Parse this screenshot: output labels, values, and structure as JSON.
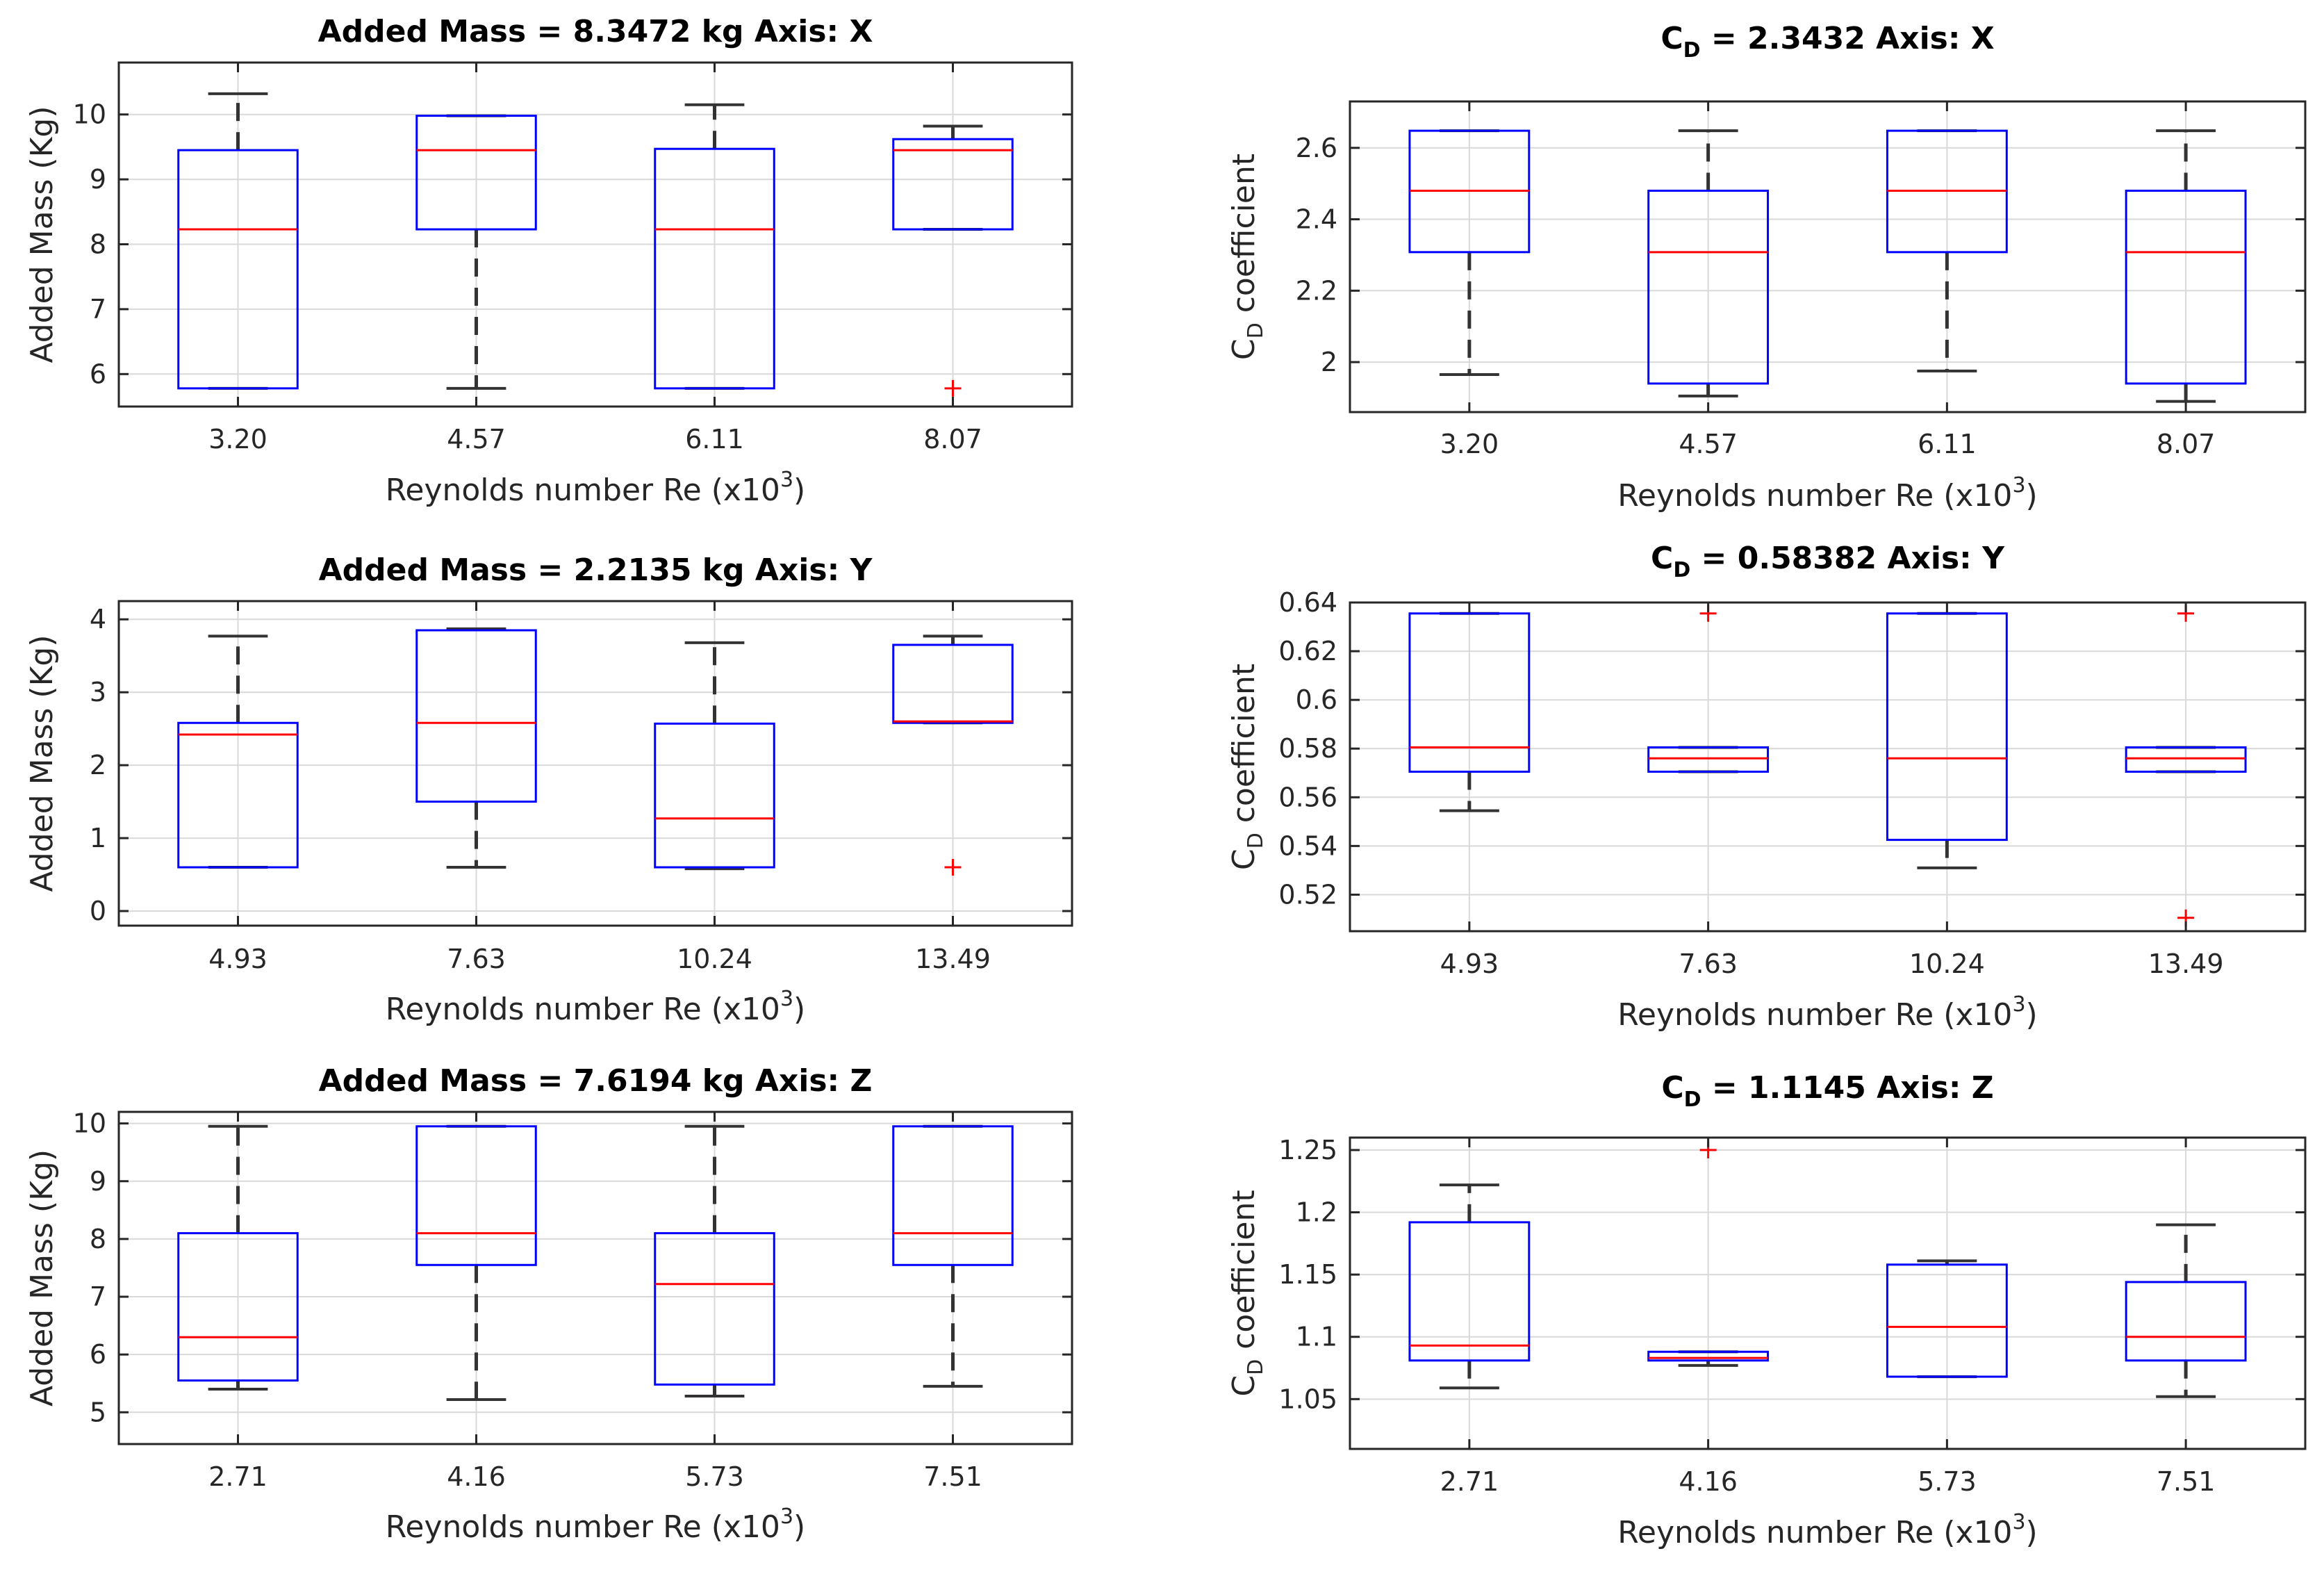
{
  "figure": {
    "background": "#ffffff",
    "colors": {
      "box": "#0000ff",
      "median": "#ff0000",
      "whisker": "#333333",
      "outlier": "#ff0000",
      "grid": "#d9d9d9",
      "axis": "#262626"
    }
  },
  "chart_data": [
    {
      "type": "box",
      "title": "Added Mass = 8.3472 kg Axis: X",
      "xlabel": "Reynolds number Re (x10",
      "xlabel_sup": "3",
      "xlabel_end": ")",
      "ylabel": "Added Mass (Kg)",
      "ylim": [
        5.5,
        10.8
      ],
      "yticks": [
        6,
        7,
        8,
        9,
        10
      ],
      "ytick_labels": [
        "6",
        "7",
        "8",
        "9",
        "10"
      ],
      "grid": true,
      "categories": [
        "3.20",
        "4.57",
        "6.11",
        "8.07"
      ],
      "boxes": [
        {
          "low": 5.78,
          "q1": 5.78,
          "median": 8.23,
          "q3": 9.45,
          "high": 10.32,
          "outliers": []
        },
        {
          "low": 5.78,
          "q1": 8.23,
          "median": 9.45,
          "q3": 9.98,
          "high": 9.98,
          "outliers": []
        },
        {
          "low": 5.78,
          "q1": 5.78,
          "median": 8.23,
          "q3": 9.47,
          "high": 10.15,
          "outliers": []
        },
        {
          "low": 8.23,
          "q1": 8.23,
          "median": 9.45,
          "q3": 9.62,
          "high": 9.82,
          "outliers": [
            5.78
          ]
        }
      ]
    },
    {
      "type": "box",
      "title_pre": "C",
      "title_sub": "D",
      "title_post": " = 2.3432 Axis: X",
      "xlabel": "Reynolds number Re (x10",
      "xlabel_sup": "3",
      "xlabel_end": ")",
      "ylabel_pre": "C",
      "ylabel_sub": "D",
      "ylabel_post": " coefficient",
      "ylim": [
        1.86,
        2.73
      ],
      "yticks": [
        2.0,
        2.2,
        2.4,
        2.6
      ],
      "ytick_labels": [
        "2",
        "2.2",
        "2.4",
        "2.6"
      ],
      "grid": true,
      "categories": [
        "3.20",
        "4.57",
        "6.11",
        "8.07"
      ],
      "boxes": [
        {
          "low": 1.965,
          "q1": 2.308,
          "median": 2.48,
          "q3": 2.648,
          "high": 2.648,
          "outliers": []
        },
        {
          "low": 1.905,
          "q1": 1.94,
          "median": 2.308,
          "q3": 2.48,
          "high": 2.648,
          "outliers": []
        },
        {
          "low": 1.975,
          "q1": 2.308,
          "median": 2.48,
          "q3": 2.648,
          "high": 2.648,
          "outliers": []
        },
        {
          "low": 1.89,
          "q1": 1.94,
          "median": 2.308,
          "q3": 2.48,
          "high": 2.648,
          "outliers": []
        }
      ]
    },
    {
      "type": "box",
      "title": "Added Mass = 2.2135 kg Axis: Y",
      "xlabel": "Reynolds number Re (x10",
      "xlabel_sup": "3",
      "xlabel_end": ")",
      "ylabel": "Added Mass (Kg)",
      "ylim": [
        -0.2,
        4.25
      ],
      "yticks": [
        0,
        1,
        2,
        3,
        4
      ],
      "ytick_labels": [
        "0",
        "1",
        "2",
        "3",
        "4"
      ],
      "grid": true,
      "categories": [
        "4.93",
        "7.63",
        "10.24",
        "13.49"
      ],
      "boxes": [
        {
          "low": 0.6,
          "q1": 0.6,
          "median": 2.42,
          "q3": 2.58,
          "high": 3.77,
          "outliers": []
        },
        {
          "low": 0.6,
          "q1": 1.5,
          "median": 2.58,
          "q3": 3.85,
          "high": 3.87,
          "outliers": []
        },
        {
          "low": 0.58,
          "q1": 0.6,
          "median": 1.27,
          "q3": 2.57,
          "high": 3.68,
          "outliers": []
        },
        {
          "low": 2.58,
          "q1": 2.58,
          "median": 2.6,
          "q3": 3.65,
          "high": 3.77,
          "outliers": [
            0.6
          ]
        }
      ]
    },
    {
      "type": "box",
      "title_pre": "C",
      "title_sub": "D",
      "title_post": " = 0.58382 Axis: Y",
      "xlabel": "Reynolds number Re (x10",
      "xlabel_sup": "3",
      "xlabel_end": ")",
      "ylabel_pre": "C",
      "ylabel_sub": "D",
      "ylabel_post": " coefficient",
      "ylim": [
        0.505,
        0.64
      ],
      "yticks": [
        0.52,
        0.54,
        0.56,
        0.58,
        0.6,
        0.62,
        0.64
      ],
      "ytick_labels": [
        "0.52",
        "0.54",
        "0.56",
        "0.58",
        "0.6",
        "0.62",
        "0.64"
      ],
      "grid": true,
      "categories": [
        "4.93",
        "7.63",
        "10.24",
        "13.49"
      ],
      "boxes": [
        {
          "low": 0.5545,
          "q1": 0.5705,
          "median": 0.5805,
          "q3": 0.6355,
          "high": 0.6355,
          "outliers": []
        },
        {
          "low": 0.5705,
          "q1": 0.5705,
          "median": 0.576,
          "q3": 0.5805,
          "high": 0.5805,
          "outliers": [
            0.6355
          ]
        },
        {
          "low": 0.531,
          "q1": 0.5425,
          "median": 0.576,
          "q3": 0.6355,
          "high": 0.6355,
          "outliers": []
        },
        {
          "low": 0.5705,
          "q1": 0.5705,
          "median": 0.576,
          "q3": 0.5805,
          "high": 0.5805,
          "outliers": [
            0.6355,
            0.5105
          ]
        }
      ]
    },
    {
      "type": "box",
      "title": "Added Mass = 7.6194 kg Axis: Z",
      "xlabel": "Reynolds number Re (x10",
      "xlabel_sup": "3",
      "xlabel_end": ")",
      "ylabel": "Added Mass (Kg)",
      "ylim": [
        4.45,
        10.2
      ],
      "yticks": [
        5,
        6,
        7,
        8,
        9,
        10
      ],
      "ytick_labels": [
        "5",
        "6",
        "7",
        "8",
        "9",
        "10"
      ],
      "grid": true,
      "categories": [
        "2.71",
        "4.16",
        "5.73",
        "7.51"
      ],
      "boxes": [
        {
          "low": 5.4,
          "q1": 5.55,
          "median": 6.3,
          "q3": 8.1,
          "high": 9.95,
          "outliers": []
        },
        {
          "low": 5.22,
          "q1": 7.55,
          "median": 8.1,
          "q3": 9.95,
          "high": 9.95,
          "outliers": []
        },
        {
          "low": 5.28,
          "q1": 5.48,
          "median": 7.22,
          "q3": 8.1,
          "high": 9.95,
          "outliers": []
        },
        {
          "low": 5.45,
          "q1": 7.55,
          "median": 8.1,
          "q3": 9.95,
          "high": 9.95,
          "outliers": []
        }
      ]
    },
    {
      "type": "box",
      "title_pre": "C",
      "title_sub": "D",
      "title_post": " = 1.1145 Axis: Z",
      "xlabel": "Reynolds number Re (x10",
      "xlabel_sup": "3",
      "xlabel_end": ")",
      "ylabel_pre": "C",
      "ylabel_sub": "D",
      "ylabel_post": " coefficient",
      "ylim": [
        1.01,
        1.26
      ],
      "yticks": [
        1.05,
        1.1,
        1.15,
        1.2,
        1.25
      ],
      "ytick_labels": [
        "1.05",
        "1.1",
        "1.15",
        "1.2",
        "1.25"
      ],
      "grid": true,
      "categories": [
        "2.71",
        "4.16",
        "5.73",
        "7.51"
      ],
      "boxes": [
        {
          "low": 1.059,
          "q1": 1.081,
          "median": 1.093,
          "q3": 1.192,
          "high": 1.222,
          "outliers": []
        },
        {
          "low": 1.077,
          "q1": 1.081,
          "median": 1.083,
          "q3": 1.088,
          "high": 1.088,
          "outliers": [
            1.25
          ]
        },
        {
          "low": 1.068,
          "q1": 1.068,
          "median": 1.108,
          "q3": 1.158,
          "high": 1.161,
          "outliers": []
        },
        {
          "low": 1.052,
          "q1": 1.081,
          "median": 1.1,
          "q3": 1.144,
          "high": 1.19,
          "outliers": []
        }
      ]
    }
  ]
}
